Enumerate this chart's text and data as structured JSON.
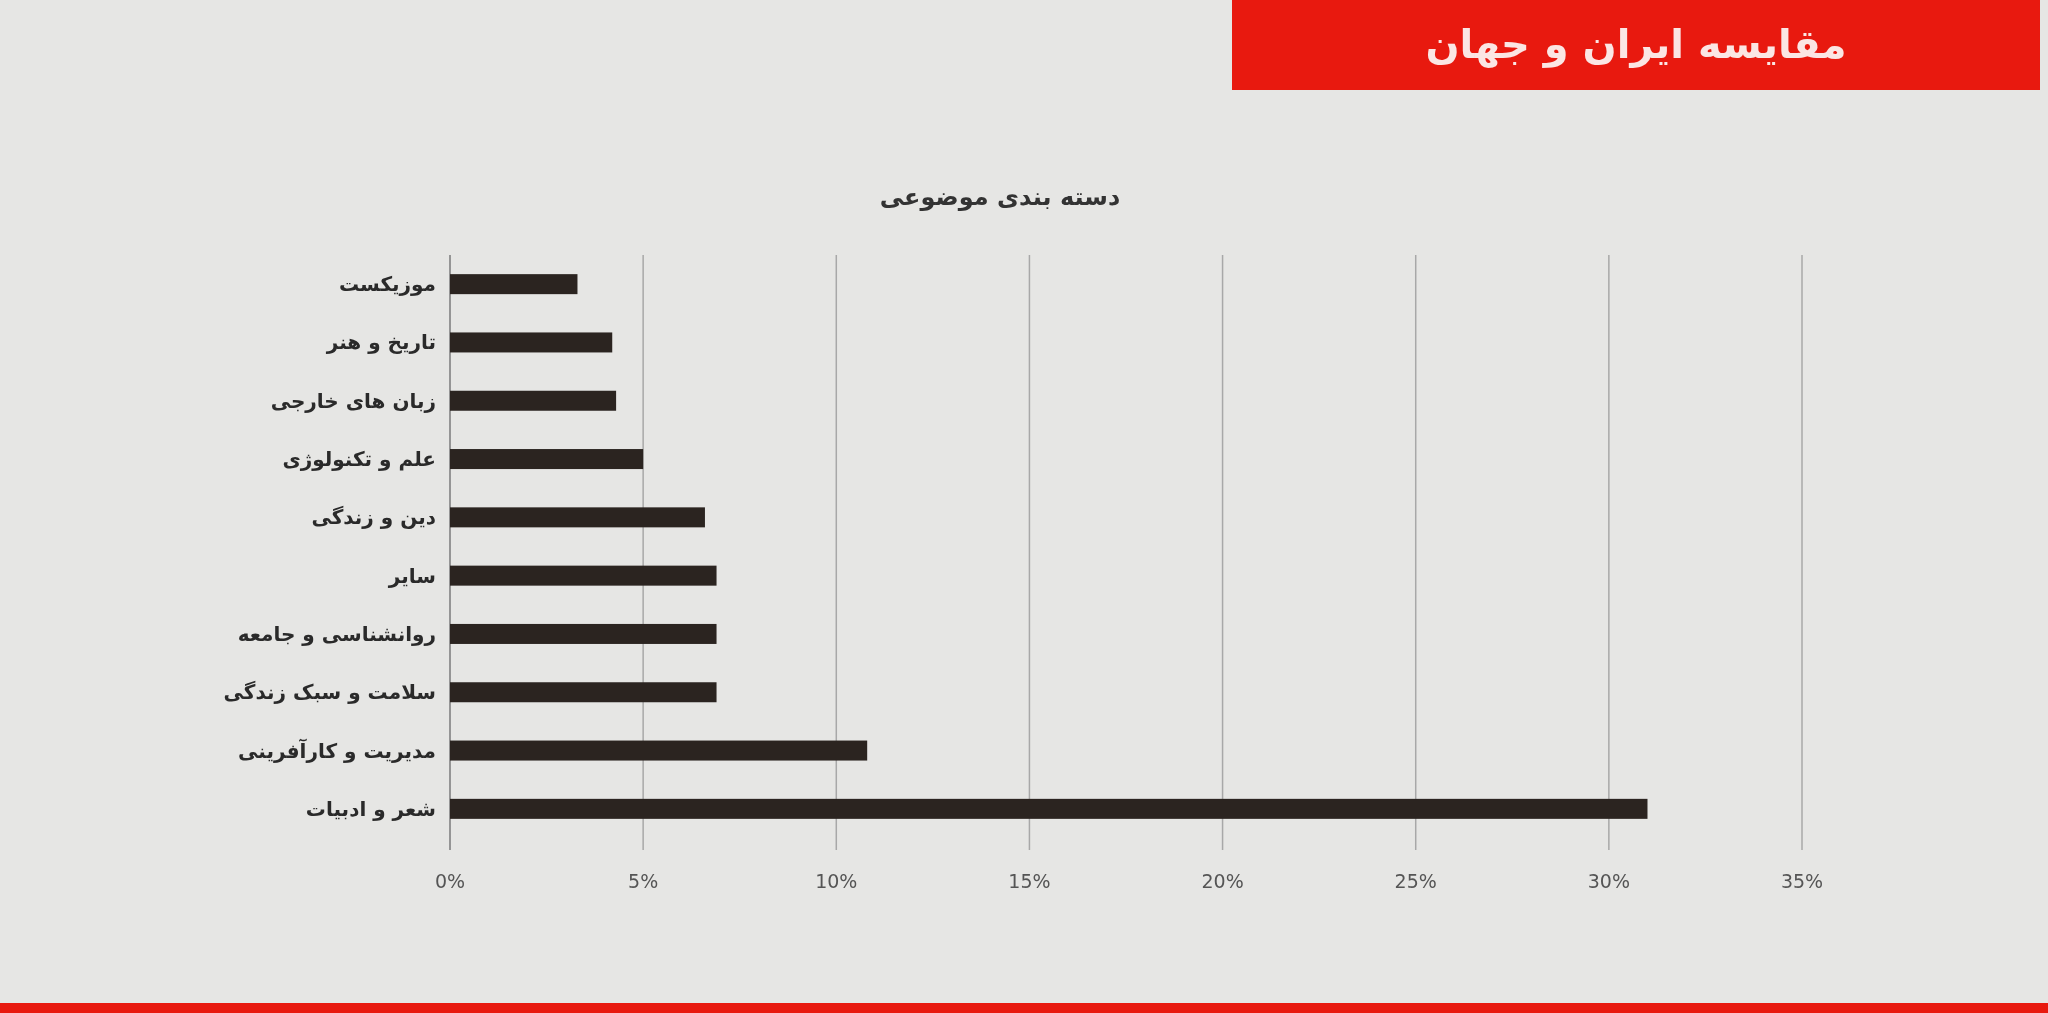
{
  "chart_data": {
    "type": "bar",
    "orientation": "horizontal",
    "title": "مقایسه ایران و جهان",
    "subtitle": "دسته بندی موضوعی",
    "categories": [
      "موزیکست",
      "تاریخ و هنر",
      "زبان های خارجی",
      "علم و تکنولوژی",
      "دین و زندگی",
      "سایر",
      "روانشناسی و جامعه",
      "سلامت و سبک زندگی",
      "مدیریت و کارآفرینی",
      "شعر و ادبیات"
    ],
    "values": [
      3.3,
      4.2,
      4.3,
      5.0,
      6.6,
      6.9,
      6.9,
      6.9,
      10.8,
      31.0
    ],
    "color": "#2b2420",
    "xlim": [
      0,
      35
    ],
    "xticks": [
      {
        "value": 0,
        "label": "0%"
      },
      {
        "value": 5,
        "label": "5%"
      },
      {
        "value": 10,
        "label": "10%"
      },
      {
        "value": 15,
        "label": "15%"
      },
      {
        "value": 20,
        "label": "20%"
      },
      {
        "value": 25,
        "label": "25%"
      },
      {
        "value": 30,
        "label": "30%"
      },
      {
        "value": 35,
        "label": "35%"
      }
    ],
    "grid": "x"
  }
}
